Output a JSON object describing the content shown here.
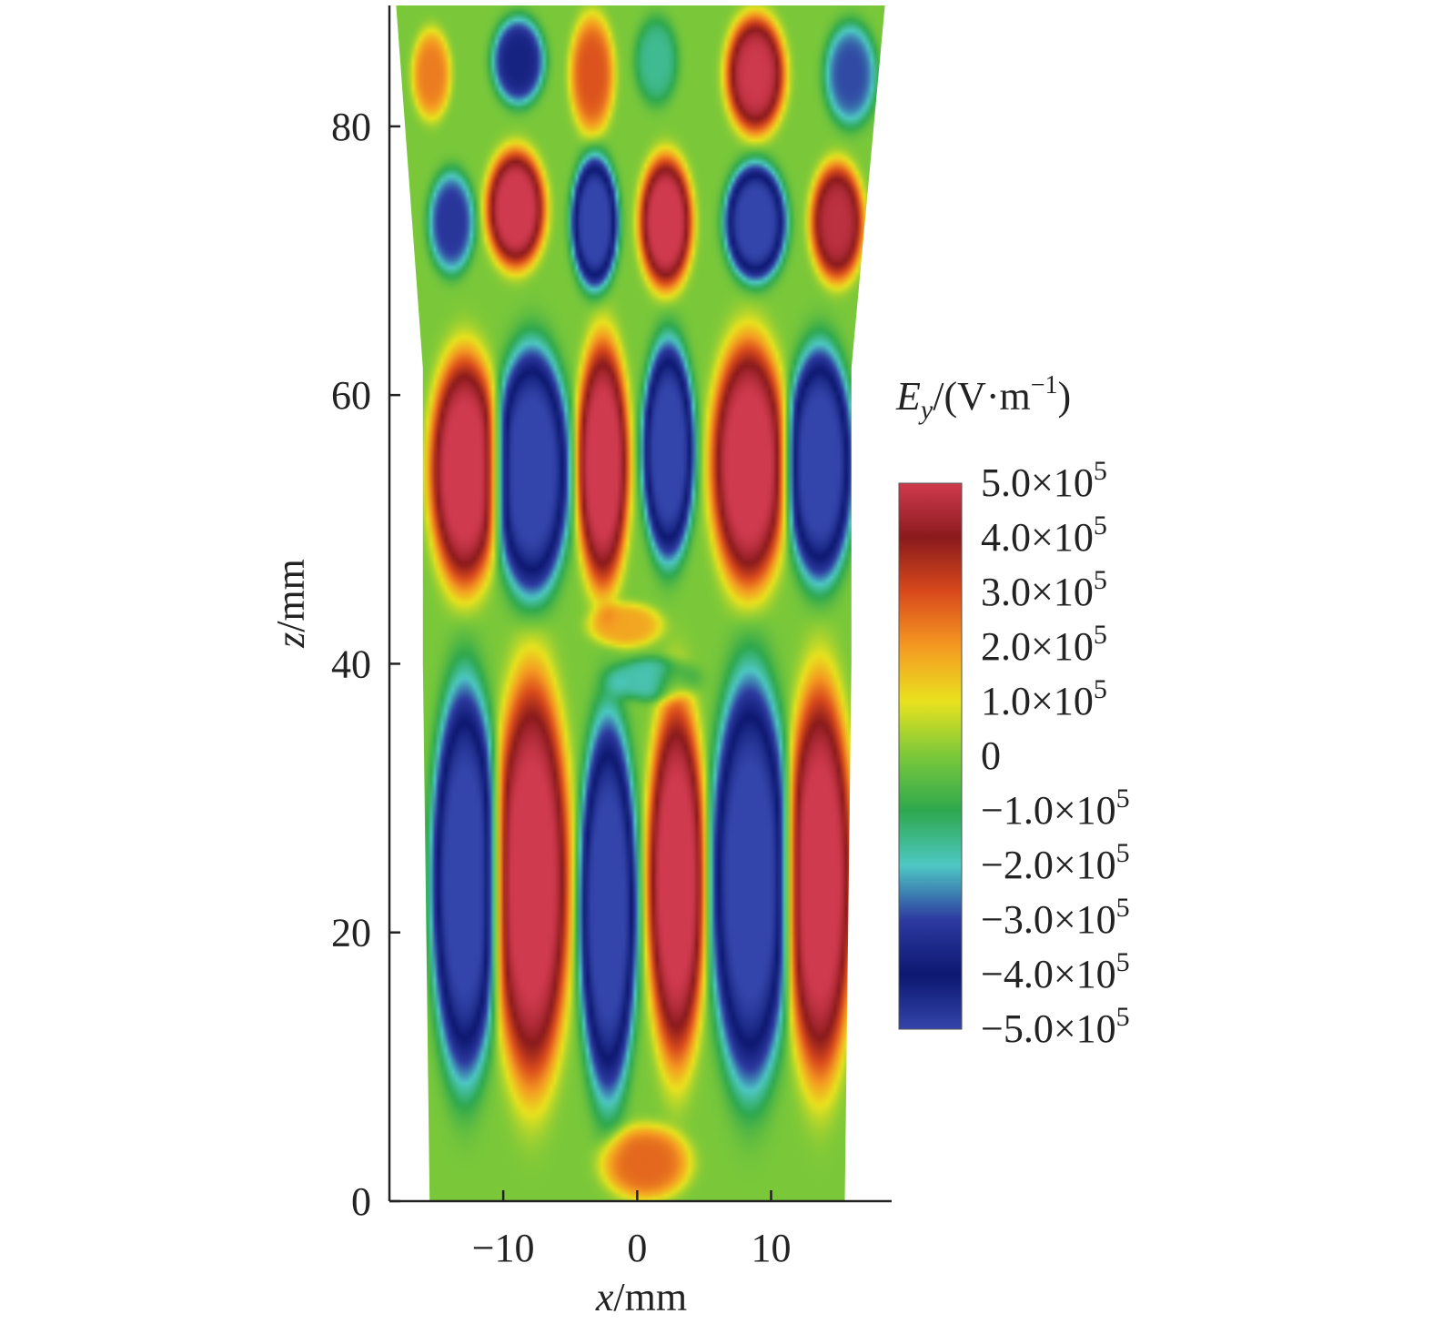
{
  "chart_data": {
    "type": "heatmap",
    "title": "",
    "xlabel_var": "x",
    "xlabel_unit": "/mm",
    "ylabel_var": "z",
    "ylabel_unit": "/mm",
    "xlim": [
      -18.5,
      19
    ],
    "ylim": [
      0,
      89
    ],
    "x_ticks": [
      -10,
      0,
      10
    ],
    "x_tick_labels": [
      "−10",
      "0",
      "10"
    ],
    "y_ticks": [
      0,
      20,
      40,
      60,
      80
    ],
    "y_tick_labels": [
      "0",
      "20",
      "40",
      "60",
      "80"
    ],
    "grid": false,
    "colorbar": {
      "title_var": "E",
      "title_sub": "y",
      "title_rest": "/(V·m",
      "title_sup": "−1",
      "title_close": ")",
      "placement": "right",
      "min": -500000,
      "max": 500000,
      "ticks": [
        {
          "value": 500000,
          "mantissa": "5.0×10",
          "exp": "5"
        },
        {
          "value": 400000,
          "mantissa": "4.0×10",
          "exp": "5"
        },
        {
          "value": 300000,
          "mantissa": "3.0×10",
          "exp": "5"
        },
        {
          "value": 200000,
          "mantissa": "2.0×10",
          "exp": "5"
        },
        {
          "value": 100000,
          "mantissa": "1.0×10",
          "exp": "5"
        },
        {
          "value": 0,
          "mantissa": "0",
          "exp": ""
        },
        {
          "value": -100000,
          "mantissa": "−1.0×10",
          "exp": "5"
        },
        {
          "value": -200000,
          "mantissa": "−2.0×10",
          "exp": "5"
        },
        {
          "value": -300000,
          "mantissa": "−3.0×10",
          "exp": "5"
        },
        {
          "value": -400000,
          "mantissa": "−4.0×10",
          "exp": "5"
        },
        {
          "value": -500000,
          "mantissa": "−5.0×10",
          "exp": "5"
        }
      ],
      "colors": [
        "#cf3a4e",
        "#8a1a1c",
        "#d94a1c",
        "#f59a22",
        "#e8e21e",
        "#7ac83a",
        "#2ea84e",
        "#4ec8c4",
        "#2d3aa0",
        "#0c1870",
        "#3344aa"
      ]
    },
    "field_region": {
      "bottom_x": [
        -15.5,
        15.5
      ],
      "top_x": [
        -18,
        18.5
      ],
      "mid_x": [
        -16,
        16
      ]
    },
    "lobes": [
      {
        "x": -13,
        "z": 54.5,
        "wx": 2.4,
        "wz": 8.0,
        "sign": 1
      },
      {
        "x": -8,
        "z": 54.5,
        "wx": 2.6,
        "wz": 8.5,
        "sign": -1
      },
      {
        "x": -2.7,
        "z": 55,
        "wx": 1.8,
        "wz": 8.5,
        "sign": 1
      },
      {
        "x": 2.2,
        "z": 56,
        "wx": 1.8,
        "wz": 7.5,
        "sign": -1
      },
      {
        "x": 8.2,
        "z": 55,
        "wx": 2.6,
        "wz": 8.5,
        "sign": 1
      },
      {
        "x": 13.5,
        "z": 55,
        "wx": 2.3,
        "wz": 8.0,
        "sign": -1
      },
      {
        "x": -13,
        "z": 24,
        "wx": 2.3,
        "wz": 13.5,
        "sign": -1
      },
      {
        "x": -8,
        "z": 24,
        "wx": 2.6,
        "wz": 14.0,
        "sign": 1
      },
      {
        "x": -2.3,
        "z": 22,
        "wx": 2.0,
        "wz": 13.0,
        "sign": -1
      },
      {
        "x": 2.8,
        "z": 24,
        "wx": 2.0,
        "wz": 12.5,
        "sign": 1
      },
      {
        "x": 8.3,
        "z": 24,
        "wx": 2.7,
        "wz": 14.0,
        "sign": -1
      },
      {
        "x": 13.5,
        "z": 24,
        "wx": 2.3,
        "wz": 13.5,
        "sign": 1
      },
      {
        "x": -14,
        "z": 73,
        "wx": 1.6,
        "wz": 3.5,
        "sign": -0.6
      },
      {
        "x": -9.2,
        "z": 74,
        "wx": 2.0,
        "wz": 4.0,
        "sign": 1
      },
      {
        "x": -3.3,
        "z": 73,
        "wx": 1.6,
        "wz": 4.5,
        "sign": -1
      },
      {
        "x": 2.0,
        "z": 73,
        "wx": 1.8,
        "wz": 4.5,
        "sign": 1
      },
      {
        "x": 8.7,
        "z": 73,
        "wx": 2.1,
        "wz": 4.0,
        "sign": -1
      },
      {
        "x": 14.8,
        "z": 73,
        "wx": 1.8,
        "wz": 4.0,
        "sign": 0.9
      },
      {
        "x": -15.5,
        "z": 84,
        "wx": 1.3,
        "wz": 3.0,
        "sign": 0.45
      },
      {
        "x": -9.0,
        "z": 85,
        "wx": 1.8,
        "wz": 3.0,
        "sign": -0.7
      },
      {
        "x": -3.5,
        "z": 84,
        "wx": 1.5,
        "wz": 4.0,
        "sign": 0.55
      },
      {
        "x": 1.3,
        "z": 85,
        "wx": 1.5,
        "wz": 3.0,
        "sign": -0.3
      },
      {
        "x": 8.7,
        "z": 84,
        "wx": 2.0,
        "wz": 4.0,
        "sign": 0.95
      },
      {
        "x": 15.8,
        "z": 84,
        "wx": 1.8,
        "wz": 3.5,
        "sign": -0.55
      },
      {
        "x": 0.5,
        "z": 3,
        "wx": 3.0,
        "wz": 2.5,
        "sign": 0.5
      },
      {
        "x": -1,
        "z": 43,
        "wx": 2.5,
        "wz": 1.5,
        "sign": 0.35
      },
      {
        "x": 1.0,
        "z": 39,
        "wx": 3.0,
        "wz": 1.5,
        "sign": -0.35
      }
    ]
  }
}
